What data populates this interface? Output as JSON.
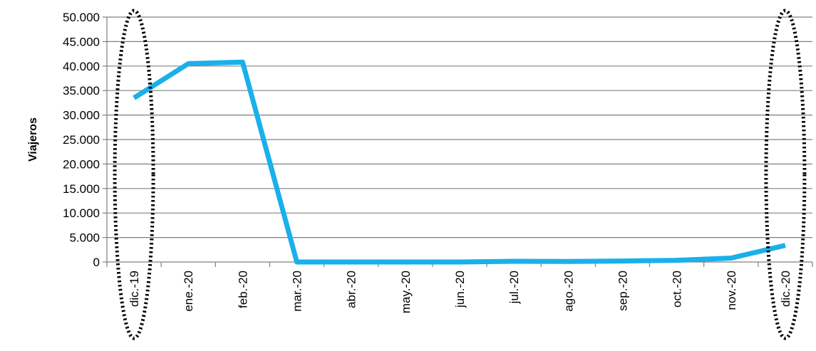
{
  "chart_data": {
    "type": "line",
    "title": "",
    "xlabel": "",
    "ylabel": "Viajeros",
    "categories": [
      "dic.-19",
      "ene.-20",
      "feb.-20",
      "mar.-20",
      "abr.-20",
      "may.-20",
      "jun.-20",
      "jul.-20",
      "ago.-20",
      "sep.-20",
      "oct.-20",
      "nov.-20",
      "dic.-20"
    ],
    "series": [
      {
        "values": [
          33500,
          40500,
          40800,
          0,
          0,
          0,
          0,
          150,
          100,
          200,
          350,
          800,
          3400
        ],
        "color": "#1ab0ea"
      }
    ],
    "ylim": [
      0,
      50000
    ],
    "yticks": [
      0,
      5000,
      10000,
      15000,
      20000,
      25000,
      30000,
      35000,
      40000,
      45000,
      50000
    ],
    "ytick_labels": [
      "0",
      "5.000",
      "10.000",
      "15.000",
      "20.000",
      "25.000",
      "30.000",
      "35.000",
      "40.000",
      "45.000",
      "50.000"
    ],
    "grid": true,
    "legend": "none",
    "annotations": [
      {
        "type": "dotted-ellipse",
        "category": "dic.-19"
      },
      {
        "type": "dotted-ellipse",
        "category": "dic.-20"
      }
    ],
    "colors": {
      "line": "#1ab0ea",
      "grid": "#808080",
      "axis": "#808080",
      "annotation": "#000000"
    }
  }
}
